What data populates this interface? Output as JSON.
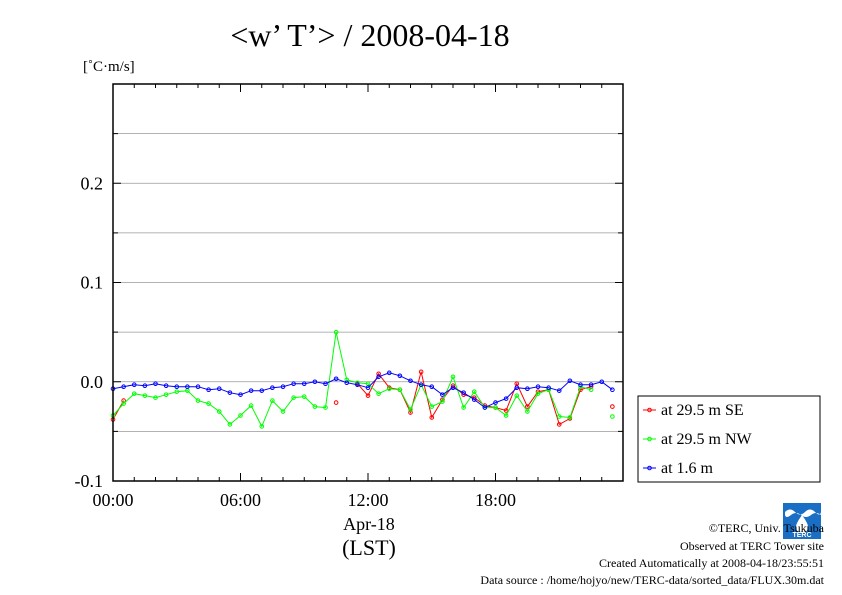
{
  "chart_data": {
    "type": "line",
    "title": "<w’ T’> / 2008-04-18",
    "ylabel": "[˚C·m/s]",
    "ylim": [
      -0.1,
      0.3
    ],
    "yticks": [
      -0.1,
      0.0,
      0.1,
      0.2
    ],
    "ytick_labels": [
      "-0.1",
      "0.0",
      "0.1",
      "0.2"
    ],
    "xlim": [
      0,
      24
    ],
    "xticks": [
      0,
      6,
      12,
      18
    ],
    "xtick_labels": [
      "00:00",
      "06:00",
      "12:00",
      "18:00"
    ],
    "xlabel_date": "Apr-18",
    "xlabel_tz": "(LST)",
    "grid": true,
    "legend_position": "outside-right-bottom",
    "series": [
      {
        "name": "at 29.5 m SE",
        "color": "#ff0000",
        "points": [
          [
            0.0,
            -0.038
          ],
          [
            0.5,
            -0.019
          ],
          [
            10.5,
            -0.021
          ],
          [
            11.5,
            -0.002
          ],
          [
            12.0,
            -0.014
          ],
          [
            12.5,
            0.008
          ],
          [
            13.0,
            -0.006
          ],
          [
            13.5,
            -0.008
          ],
          [
            14.0,
            -0.031
          ],
          [
            14.5,
            0.01
          ],
          [
            15.0,
            -0.036
          ],
          [
            15.5,
            -0.018
          ],
          [
            16.0,
            -0.004
          ],
          [
            16.5,
            -0.013
          ],
          [
            17.0,
            -0.016
          ],
          [
            17.5,
            -0.024
          ],
          [
            18.0,
            -0.026
          ],
          [
            18.5,
            -0.029
          ],
          [
            19.0,
            -0.002
          ],
          [
            19.5,
            -0.025
          ],
          [
            20.0,
            -0.01
          ],
          [
            20.5,
            -0.008
          ],
          [
            21.0,
            -0.043
          ],
          [
            21.5,
            -0.037
          ],
          [
            22.0,
            -0.008
          ],
          [
            22.5,
            -0.005
          ],
          [
            23.5,
            -0.025
          ]
        ]
      },
      {
        "name": "at 29.5 m NW",
        "color": "#00ff00",
        "points": [
          [
            0.0,
            -0.034
          ],
          [
            0.5,
            -0.022
          ],
          [
            1.0,
            -0.012
          ],
          [
            1.5,
            -0.014
          ],
          [
            2.0,
            -0.016
          ],
          [
            2.5,
            -0.013
          ],
          [
            3.0,
            -0.01
          ],
          [
            3.5,
            -0.009
          ],
          [
            4.0,
            -0.019
          ],
          [
            4.5,
            -0.022
          ],
          [
            5.0,
            -0.03
          ],
          [
            5.5,
            -0.043
          ],
          [
            6.0,
            -0.034
          ],
          [
            6.5,
            -0.024
          ],
          [
            7.0,
            -0.045
          ],
          [
            7.5,
            -0.019
          ],
          [
            8.0,
            -0.03
          ],
          [
            8.5,
            -0.016
          ],
          [
            9.0,
            -0.015
          ],
          [
            9.5,
            -0.025
          ],
          [
            10.0,
            -0.026
          ],
          [
            10.5,
            0.05
          ],
          [
            11.0,
            0.002
          ],
          [
            11.5,
            -0.001
          ],
          [
            12.0,
            -0.002
          ],
          [
            12.5,
            -0.012
          ],
          [
            13.0,
            -0.007
          ],
          [
            13.5,
            -0.008
          ],
          [
            14.0,
            -0.028
          ],
          [
            14.5,
            -0.003
          ],
          [
            15.0,
            -0.025
          ],
          [
            15.5,
            -0.02
          ],
          [
            16.0,
            0.005
          ],
          [
            16.5,
            -0.026
          ],
          [
            17.0,
            -0.01
          ],
          [
            17.5,
            -0.026
          ],
          [
            18.0,
            -0.026
          ],
          [
            18.5,
            -0.034
          ],
          [
            19.0,
            -0.014
          ],
          [
            19.5,
            -0.03
          ],
          [
            20.0,
            -0.012
          ],
          [
            20.5,
            -0.008
          ],
          [
            21.0,
            -0.035
          ],
          [
            21.5,
            -0.036
          ],
          [
            22.0,
            -0.005
          ],
          [
            22.5,
            -0.008
          ],
          [
            23.5,
            -0.035
          ]
        ]
      },
      {
        "name": "at 1.6 m",
        "color": "#0000ff",
        "points": [
          [
            0.0,
            -0.007
          ],
          [
            0.5,
            -0.005
          ],
          [
            1.0,
            -0.003
          ],
          [
            1.5,
            -0.004
          ],
          [
            2.0,
            -0.002
          ],
          [
            2.5,
            -0.004
          ],
          [
            3.0,
            -0.005
          ],
          [
            3.5,
            -0.005
          ],
          [
            4.0,
            -0.005
          ],
          [
            4.5,
            -0.008
          ],
          [
            5.0,
            -0.007
          ],
          [
            5.5,
            -0.011
          ],
          [
            6.0,
            -0.013
          ],
          [
            6.5,
            -0.009
          ],
          [
            7.0,
            -0.009
          ],
          [
            7.5,
            -0.006
          ],
          [
            8.0,
            -0.005
          ],
          [
            8.5,
            -0.002
          ],
          [
            9.0,
            -0.002
          ],
          [
            9.5,
            0.0
          ],
          [
            10.0,
            -0.002
          ],
          [
            10.5,
            0.003
          ],
          [
            11.0,
            -0.001
          ],
          [
            11.5,
            -0.003
          ],
          [
            12.0,
            -0.006
          ],
          [
            12.5,
            0.005
          ],
          [
            13.0,
            0.009
          ],
          [
            13.5,
            0.006
          ],
          [
            14.0,
            0.001
          ],
          [
            14.5,
            -0.003
          ],
          [
            15.0,
            -0.005
          ],
          [
            15.5,
            -0.013
          ],
          [
            16.0,
            -0.006
          ],
          [
            16.5,
            -0.011
          ],
          [
            17.0,
            -0.018
          ],
          [
            17.5,
            -0.026
          ],
          [
            18.0,
            -0.021
          ],
          [
            18.5,
            -0.017
          ],
          [
            19.0,
            -0.006
          ],
          [
            19.5,
            -0.007
          ],
          [
            20.0,
            -0.005
          ],
          [
            20.5,
            -0.006
          ],
          [
            21.0,
            -0.009
          ],
          [
            21.5,
            0.001
          ],
          [
            22.0,
            -0.003
          ],
          [
            22.5,
            -0.003
          ],
          [
            23.0,
            0.0
          ],
          [
            23.5,
            -0.008
          ]
        ]
      }
    ]
  },
  "footer": {
    "copyright": "©TERC, Univ. Tsukuba",
    "observed": "Observed at TERC Tower site",
    "created": "Created Automatically at 2008-04-18/23:55:51",
    "source": "Data source : /home/hojyo/new/TERC-data/sorted_data/FLUX.30m.dat"
  },
  "logo": {
    "name": "terc-logo",
    "text": "TERC",
    "color": "#1a6fc4"
  }
}
